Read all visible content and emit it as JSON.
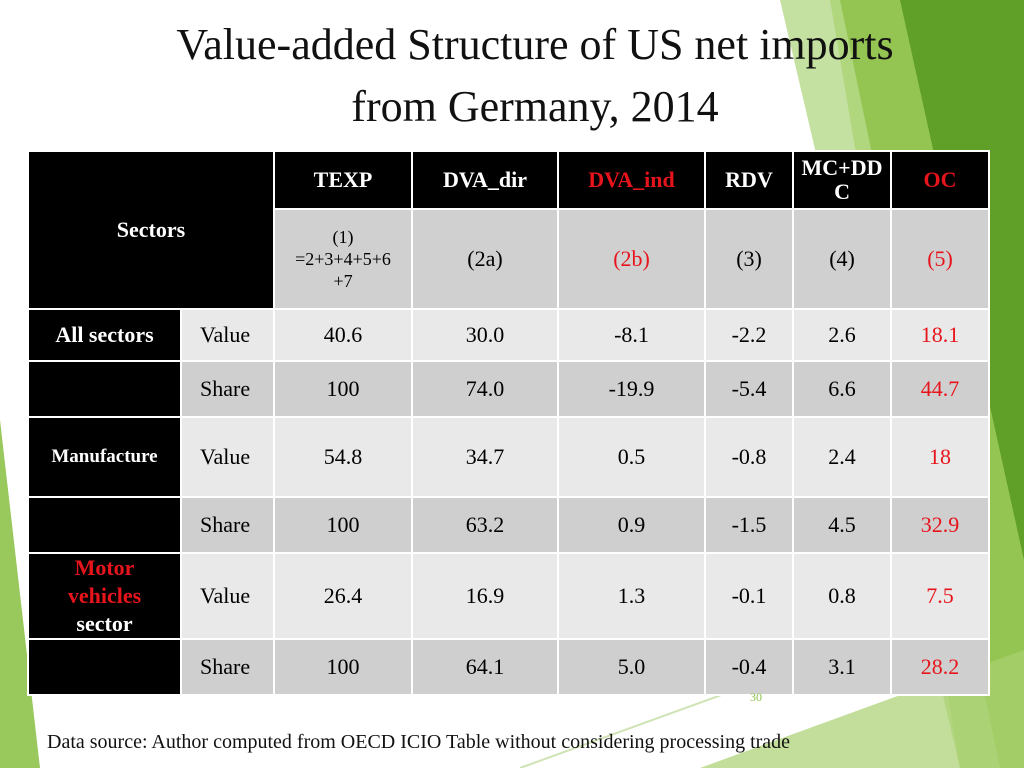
{
  "slide": {
    "title_line1": "Value-added Structure of US net imports",
    "title_line2": "from Germany, 2014",
    "page_number": "30",
    "source_note": "Data source: Author computed from OECD ICIO Table without considering  processing trade"
  },
  "colors": {
    "accent_red": "#e8141c",
    "header_black": "#000000",
    "row_light": "#e9e9e9",
    "row_dark": "#cfcfcf",
    "decor_green": "#8ec24a"
  },
  "table": {
    "sectors_label": "Sectors",
    "headers": [
      "TEXP",
      "DVA_dir",
      "DVA_ind",
      "RDV",
      "MC+DDC",
      "OC"
    ],
    "header_line": {
      "mcddc_a": "MC+DD",
      "mcddc_b": "C"
    },
    "formulas": {
      "texp_a": "(1)",
      "texp_b": "=2+3+4+5+6",
      "texp_c": "+7",
      "dva_dir": "(2a)",
      "dva_ind": "(2b)",
      "rdv": "(3)",
      "mcddc": "(4)",
      "oc": "(5)"
    },
    "row_labels": {
      "all_sectors": "All sectors",
      "manufacture": "Manufacture",
      "motor_a": "Motor",
      "motor_b": "vehicles",
      "motor_c": "sector"
    },
    "rows": [
      {
        "kind": "Value",
        "texp": "40.6",
        "dva_dir": "30.0",
        "dva_ind": "-8.1",
        "rdv": "-2.2",
        "mcddc": "2.6",
        "oc": "18.1"
      },
      {
        "kind": "Share",
        "texp": "100",
        "dva_dir": "74.0",
        "dva_ind": "-19.9",
        "rdv": "-5.4",
        "mcddc": "6.6",
        "oc": "44.7"
      },
      {
        "kind": "Value",
        "texp": "54.8",
        "dva_dir": "34.7",
        "dva_ind": "0.5",
        "rdv": "-0.8",
        "mcddc": "2.4",
        "oc": "18"
      },
      {
        "kind": "Share",
        "texp": "100",
        "dva_dir": "63.2",
        "dva_ind": "0.9",
        "rdv": "-1.5",
        "mcddc": "4.5",
        "oc": "32.9"
      },
      {
        "kind": "Value",
        "texp": "26.4",
        "dva_dir": "16.9",
        "dva_ind": "1.3",
        "rdv": "-0.1",
        "mcddc": "0.8",
        "oc": "7.5"
      },
      {
        "kind": "Share",
        "texp": "100",
        "dva_dir": "64.1",
        "dva_ind": "5.0",
        "rdv": "-0.4",
        "mcddc": "3.1",
        "oc": "28.2"
      }
    ]
  }
}
